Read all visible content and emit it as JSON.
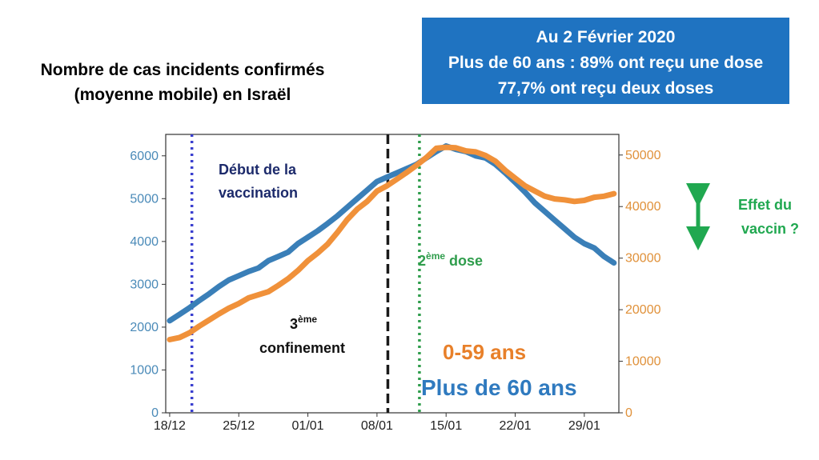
{
  "header": {
    "title": "Nombre de cas incidents confirmés\n(moyenne mobile) en Israël"
  },
  "info_box": {
    "line1": "Au 2 Février 2020",
    "line2": "Plus de 60 ans : 89% ont reçu une dose",
    "line3": "77,7% ont reçu deux doses",
    "color": "#1f73c1"
  },
  "annotations": {
    "vaccination_start_1": "Début de la",
    "vaccination_start_2": "vaccination",
    "lockdown_1_base": "3",
    "lockdown_1_sup": "ème",
    "lockdown_2": "confinement",
    "second_dose_base": "2",
    "second_dose_sup": "ème",
    "second_dose_rest": " dose",
    "effect_1": "Effet du",
    "effect_2": "vaccin ?",
    "legend_young": "0-59 ans",
    "legend_old": "Plus de 60 ans"
  },
  "chart_data": {
    "type": "line",
    "x": [
      0,
      1,
      2,
      3,
      4,
      5,
      6,
      7,
      8,
      9,
      10,
      11,
      12,
      13,
      14,
      15,
      16,
      17,
      18,
      19,
      20,
      21,
      22,
      23,
      24,
      25,
      26,
      27,
      28,
      29,
      30,
      31,
      32,
      33,
      34,
      35,
      36,
      37,
      38,
      39,
      40,
      41,
      42,
      43,
      44,
      45
    ],
    "x_ticks": [
      0,
      7,
      14,
      21,
      28,
      35,
      42
    ],
    "x_tick_labels": [
      "18/12",
      "25/12",
      "01/01",
      "08/01",
      "15/01",
      "22/01",
      "29/01"
    ],
    "xlim": [
      -0.4,
      45.5
    ],
    "y_left": {
      "lim": [
        0,
        6500
      ],
      "ticks": [
        0,
        1000,
        2000,
        3000,
        4000,
        5000,
        6000
      ],
      "color": "#4a8ab8"
    },
    "y_right": {
      "lim": [
        0,
        54000
      ],
      "ticks": [
        0,
        10000,
        20000,
        30000,
        40000,
        50000
      ],
      "color": "#e0913a"
    },
    "series": [
      {
        "name": "Plus de 60 ans",
        "axis": "left",
        "color": "#3a7fb8",
        "values": [
          2150,
          2300,
          2450,
          2620,
          2780,
          2950,
          3100,
          3200,
          3300,
          3380,
          3550,
          3650,
          3750,
          3950,
          4100,
          4250,
          4420,
          4600,
          4800,
          5000,
          5200,
          5400,
          5500,
          5600,
          5700,
          5800,
          5950,
          6100,
          6230,
          6150,
          6100,
          6000,
          5950,
          5800,
          5600,
          5380,
          5150,
          4900,
          4700,
          4500,
          4300,
          4100,
          3950,
          3850,
          3650,
          3500
        ]
      },
      {
        "name": "0-59 ans",
        "axis": "right",
        "color": "#f0913a",
        "values": [
          14200,
          14600,
          15500,
          16800,
          18000,
          19200,
          20300,
          21200,
          22300,
          22900,
          23500,
          24700,
          26000,
          27600,
          29500,
          31000,
          32700,
          35000,
          37500,
          39500,
          41000,
          43000,
          44000,
          45300,
          46600,
          48000,
          49500,
          51300,
          51500,
          51400,
          50800,
          50600,
          49900,
          48800,
          47000,
          45500,
          44000,
          43000,
          42000,
          41500,
          41300,
          41000,
          41200,
          41800,
          42000,
          42500
        ]
      }
    ],
    "vertical_lines": [
      {
        "x": 2.25,
        "style": "dotted",
        "color": "#3a3fcf"
      },
      {
        "x": 22.1,
        "style": "dashed",
        "color": "#1a1a1a"
      },
      {
        "x": 25.3,
        "style": "dotted",
        "color": "#2f9d4c"
      }
    ]
  }
}
